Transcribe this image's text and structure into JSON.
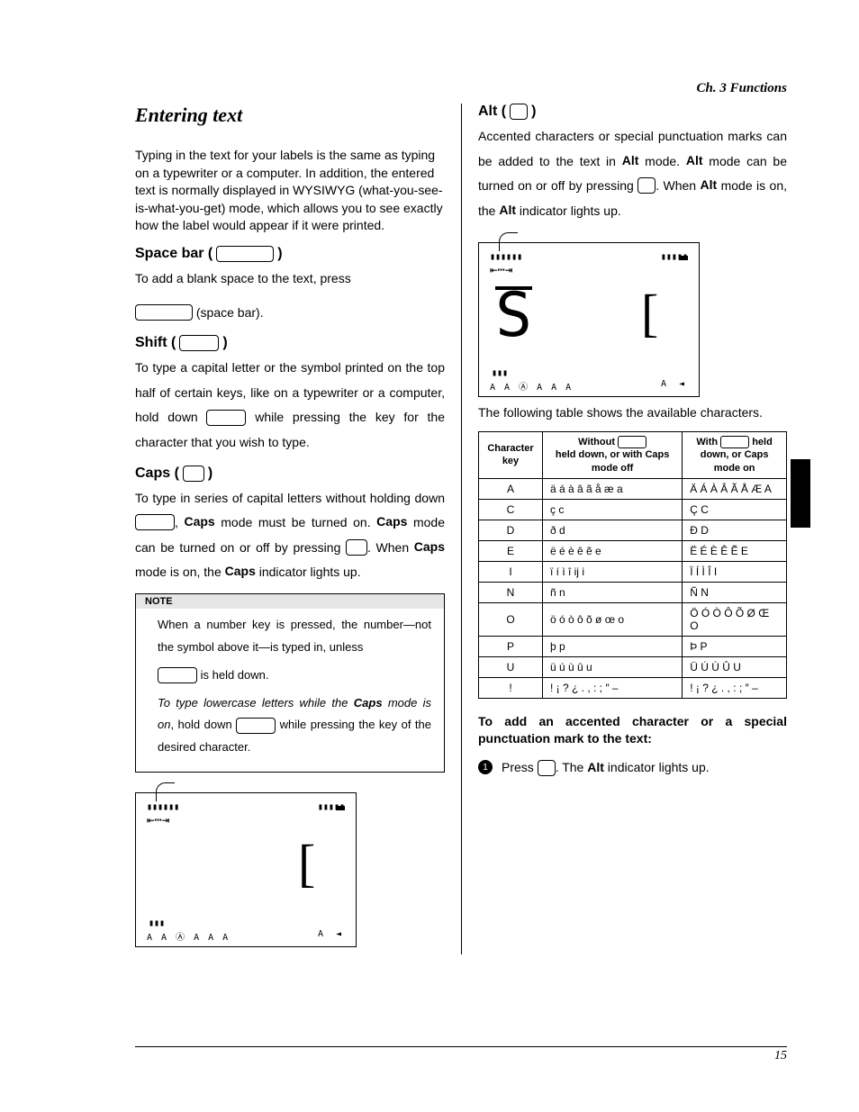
{
  "chapter_header": "Ch. 3 Functions",
  "page_number": "15",
  "left": {
    "title": "Entering text",
    "intro": "Typing in the text for your labels is the same as typing on a typewriter or a computer. In addition, the entered text is normally displayed in WYSIWYG (what-you-see-is-what-you-get) mode, which allows you to see exactly how the label would appear if it were printed.",
    "space": {
      "heading": "Space bar (",
      "heading_close": ")",
      "line1_a": "To add a blank space to the text, press",
      "line2_a": " (space bar)."
    },
    "shift": {
      "heading": "Shift (",
      "heading_close": ")",
      "p1": "To type a capital letter or the symbol printed on the top half of certain keys, like on a typewriter or a computer, hold down ",
      "p2": " while pressing the key for the character that you wish to type."
    },
    "caps": {
      "heading": "Caps (",
      "heading_close": ")",
      "p1": "To type in series of capital letters without holding down ",
      "p2": ", ",
      "p2b": "Caps",
      "p3": " mode must be turned on. ",
      "p3b": "Caps",
      "p4": " mode can be turned on or off by pressing ",
      "p5": ". When ",
      "p5b": "Caps",
      "p6": " mode is on, the ",
      "p6b": "Caps",
      "p7": " indicator lights up."
    },
    "note": {
      "title": "NOTE",
      "n1a": "When a number key is pressed, the number—not the symbol above it—is typed in, unless",
      "n1b": " is held down.",
      "n2a": "To type lowercase letters while the ",
      "n2b": "Caps",
      "n2c": " mode is on",
      "n2d": ", hold down ",
      "n2e": " while pressing the key of the desired character."
    },
    "lcd": {
      "top_left": "▮▮▮▮▮▮",
      "top_right": "▮▮▮▮▮",
      "tick": "⇤⋯⇥",
      "body": "",
      "bracket": "[",
      "bl": "▮▮▮",
      "bottom_left": "A A Ⓐ A A A",
      "bottom_right": "A   ◄"
    }
  },
  "right": {
    "alt": {
      "heading": "Alt (",
      "heading_close": ")",
      "p1": "Accented characters or special punctuation marks can be added to the text in ",
      "p1b": "Alt",
      "p2": " mode. ",
      "p2b": "Alt",
      "p3": " mode can be turned on or off by pressing ",
      "p4": ". When ",
      "p4b": "Alt",
      "p5": " mode is on, the ",
      "p5b": "Alt",
      "p6": " indicator lights up."
    },
    "lcd": {
      "top_left": "▮▮▮▮▮▮",
      "top_right": "▮▮▮▮▮",
      "tick": "⇤⋯⇥",
      "body": "S",
      "bracket": "[",
      "bl": "▮▮▮",
      "bottom_left": "A A Ⓐ A A A",
      "bottom_right": "A   ◄"
    },
    "table_intro": "The following table shows the available characters.",
    "table": {
      "head": {
        "c1": "Character key",
        "c2a": "Without ",
        "c2b": " held down, or with Caps mode off",
        "c3a": "With ",
        "c3b": " held down, or Caps mode on"
      },
      "rows": [
        {
          "k": "A",
          "a": "ä á à â ã å æ a",
          "b": "Ä Á À Â Ã Å Æ A"
        },
        {
          "k": "C",
          "a": "ç c",
          "b": "Ç C"
        },
        {
          "k": "D",
          "a": "ð d",
          "b": "Ð D"
        },
        {
          "k": "E",
          "a": "ë é è ê ẽ e",
          "b": "Ë É È Ê Ẽ E"
        },
        {
          "k": "I",
          "a": "ï í ì î ĳ i",
          "b": "Ï Í Ì Î I"
        },
        {
          "k": "N",
          "a": "ñ n",
          "b": "Ñ N"
        },
        {
          "k": "O",
          "a": "ö ó ò ô õ ø œ o",
          "b": "Ö Ó Ò Ô Õ Ø Œ O"
        },
        {
          "k": "P",
          "a": "þ p",
          "b": "Þ P"
        },
        {
          "k": "U",
          "a": "ü ú ù û u",
          "b": "Ü Ú Ù Û U"
        },
        {
          "k": "!",
          "a": "! ¡ ? ¿ . , : ; ″ –",
          "b": "! ¡ ? ¿ . , : ; ″ –"
        }
      ]
    },
    "instruction_heading": "To add an accented character or a special punctuation mark to the text:",
    "step1_a": "Press ",
    "step1_b": ". The ",
    "step1_c": "Alt",
    "step1_d": " indicator lights up."
  }
}
